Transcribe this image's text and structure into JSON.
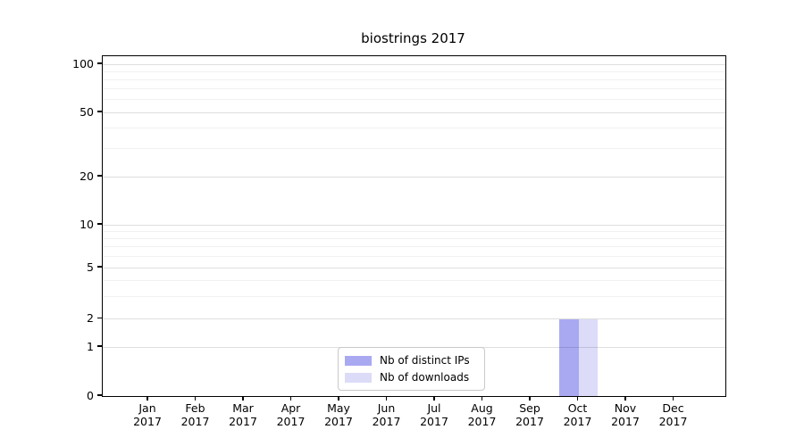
{
  "chart_data": {
    "type": "bar",
    "title": "biostrings 2017",
    "xlabel": "",
    "ylabel": "",
    "categories": [
      "Jan",
      "Feb",
      "Mar",
      "Apr",
      "May",
      "Jun",
      "Jul",
      "Aug",
      "Sep",
      "Oct",
      "Nov",
      "Dec"
    ],
    "category_year": "2017",
    "series": [
      {
        "name": "Nb of distinct IPs",
        "color": "#a9a9f2",
        "values": [
          0,
          0,
          0,
          0,
          0,
          0,
          0,
          0,
          0,
          2,
          0,
          0
        ]
      },
      {
        "name": "Nb of downloads",
        "color": "#dcdcf8",
        "values": [
          0,
          0,
          0,
          0,
          0,
          0,
          0,
          0,
          0,
          2,
          0,
          0
        ]
      }
    ],
    "y_axis": {
      "scale": "log-like",
      "ticks": [
        0,
        1,
        2,
        5,
        10,
        20,
        50,
        100
      ],
      "minor_gridlines": [
        3,
        4,
        6,
        7,
        8,
        9,
        30,
        40,
        60,
        70,
        80,
        90
      ],
      "ylim_top": 100
    },
    "grid": true,
    "legend_position": "bottom-center"
  },
  "colors": {
    "background": "#ffffff",
    "axis": "#000000",
    "bar_distinct_ips": "#a9a9f2",
    "bar_downloads": "#dcdcf8"
  }
}
